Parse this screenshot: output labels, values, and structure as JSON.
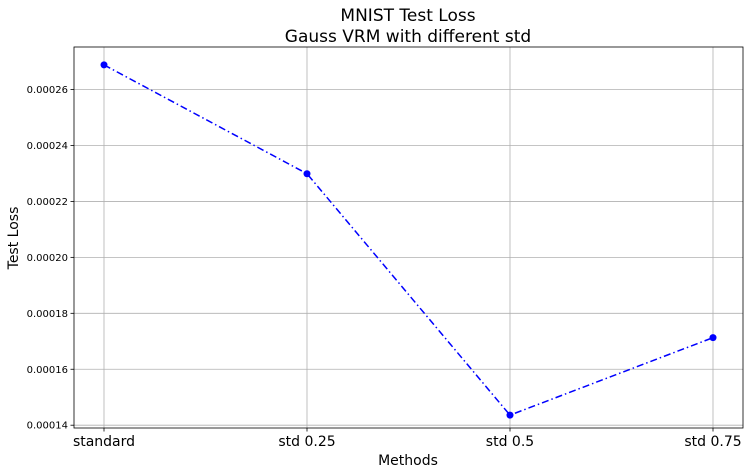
{
  "chart_data": {
    "type": "line",
    "title": "MNIST Test Loss",
    "subtitle": "Gauss VRM with different std",
    "xlabel": "Methods",
    "ylabel": "Test Loss",
    "categories": [
      "standard",
      "std 0.25",
      "std 0.5",
      "std 0.75"
    ],
    "series": [
      {
        "values": [
          0.0002688,
          0.0002299,
          0.0001436,
          0.0001713
        ],
        "color": "#0000ff",
        "line_style": "dash-dot",
        "marker": "circle"
      }
    ],
    "ylim": [
      0.000139,
      0.0002752
    ],
    "yticks": [
      0.00014,
      0.00016,
      0.00018,
      0.0002,
      0.00022,
      0.00024,
      0.00026
    ],
    "ytick_labels": [
      "0.00014",
      "0.00016",
      "0.00018",
      "0.00020",
      "0.00022",
      "0.00024",
      "0.00026"
    ],
    "grid": true,
    "legend": false
  }
}
